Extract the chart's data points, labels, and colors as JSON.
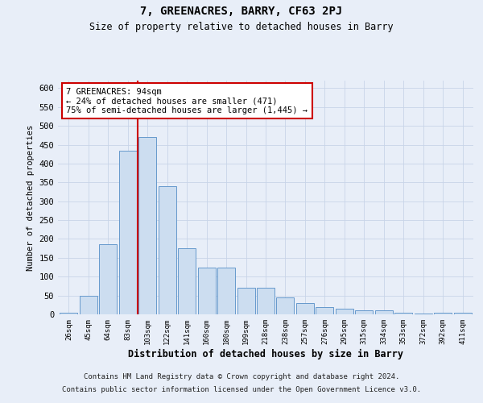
{
  "title": "7, GREENACRES, BARRY, CF63 2PJ",
  "subtitle": "Size of property relative to detached houses in Barry",
  "xlabel": "Distribution of detached houses by size in Barry",
  "ylabel": "Number of detached properties",
  "footer_line1": "Contains HM Land Registry data © Crown copyright and database right 2024.",
  "footer_line2": "Contains public sector information licensed under the Open Government Licence v3.0.",
  "categories": [
    "26sqm",
    "45sqm",
    "64sqm",
    "83sqm",
    "103sqm",
    "122sqm",
    "141sqm",
    "160sqm",
    "180sqm",
    "199sqm",
    "218sqm",
    "238sqm",
    "257sqm",
    "276sqm",
    "295sqm",
    "315sqm",
    "334sqm",
    "353sqm",
    "372sqm",
    "392sqm",
    "411sqm"
  ],
  "values": [
    5,
    50,
    185,
    435,
    470,
    340,
    175,
    125,
    125,
    70,
    70,
    45,
    30,
    20,
    15,
    10,
    10,
    5,
    3,
    5,
    5
  ],
  "bar_color": "#ccddf0",
  "bar_edge_color": "#6699cc",
  "red_line_index": 3.5,
  "red_line_color": "#cc0000",
  "annotation_text": "7 GREENACRES: 94sqm\n← 24% of detached houses are smaller (471)\n75% of semi-detached houses are larger (1,445) →",
  "annotation_box_color": "#ffffff",
  "annotation_box_edge_color": "#cc0000",
  "ylim": [
    0,
    620
  ],
  "yticks": [
    0,
    50,
    100,
    150,
    200,
    250,
    300,
    350,
    400,
    450,
    500,
    550,
    600
  ],
  "grid_color": "#c8d4e8",
  "background_color": "#e8eef8",
  "plot_bg_color": "#e8eef8",
  "title_fontsize": 10,
  "subtitle_fontsize": 8.5
}
